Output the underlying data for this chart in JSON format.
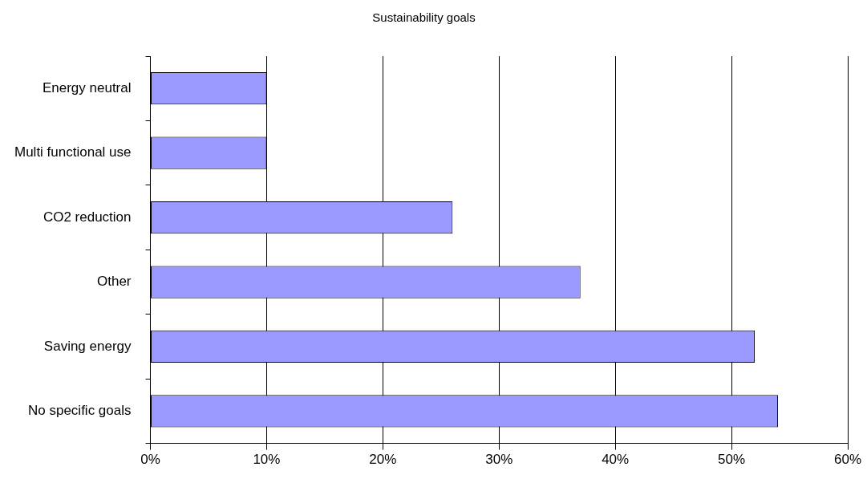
{
  "chart_data": {
    "type": "bar",
    "orientation": "horizontal",
    "title": "Sustainability goals",
    "categories": [
      "Energy neutral",
      "Multi functional use",
      "CO2 reduction",
      "Other",
      "Saving energy",
      "No specific goals"
    ],
    "values": [
      10,
      10,
      26,
      37,
      52,
      54
    ],
    "color": "#9999ff",
    "xlim": [
      0,
      60
    ],
    "xticks": [
      {
        "value": 0,
        "label": "0%"
      },
      {
        "value": 10,
        "label": "10%"
      },
      {
        "value": 20,
        "label": "20%"
      },
      {
        "value": 30,
        "label": "30%"
      },
      {
        "value": 40,
        "label": "40%"
      },
      {
        "value": 50,
        "label": "50%"
      },
      {
        "value": 60,
        "label": "60%"
      }
    ],
    "grid": "x",
    "legend": false
  }
}
